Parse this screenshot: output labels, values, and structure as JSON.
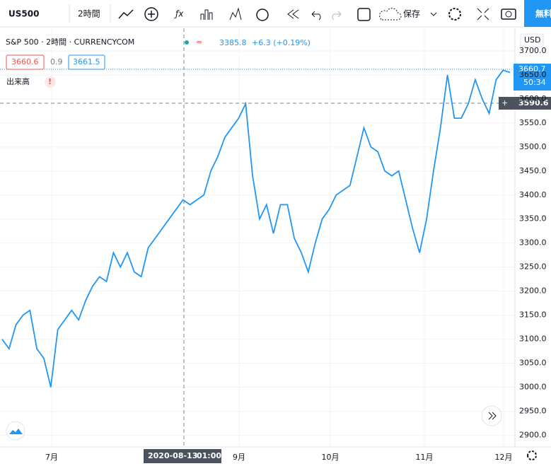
{
  "ui": {
    "symbol": "US500",
    "interval": "2時間",
    "save": "保存",
    "free": "無料",
    "legend_name": "S&P 500 · 2時間 · CURRENCYCOM",
    "legend_price": "3385.8",
    "legend_change": "+6.3 (+0.19%)",
    "bid": "3660.6",
    "spread": "0.9",
    "ask": "3661.5",
    "volume": "出来高",
    "currency": "USD",
    "last_price": "3660.7",
    "countdown": "50:34",
    "ask_line": "3655.9",
    "cross_price": "3590.6",
    "cross_time": "2020-08-13",
    "cross_hour": "01:00"
  },
  "chart_data": {
    "type": "line",
    "color": "#2196f3",
    "grid": true,
    "values": [
      3100,
      3080,
      3130,
      3150,
      3160,
      3080,
      3060,
      3000,
      3120,
      3140,
      3160,
      3140,
      3180,
      3210,
      3230,
      3220,
      3280,
      3250,
      3280,
      3240,
      3230,
      3290,
      3310,
      3330,
      3350,
      3370,
      3390,
      3380,
      3390,
      3400,
      3450,
      3480,
      3520,
      3540,
      3560,
      3590,
      3440,
      3350,
      3380,
      3320,
      3380,
      3380,
      3310,
      3280,
      3240,
      3300,
      3350,
      3370,
      3400,
      3410,
      3420,
      3480,
      3540,
      3500,
      3490,
      3450,
      3440,
      3450,
      3390,
      3330,
      3280,
      3350,
      3450,
      3540,
      3650,
      3560,
      3560,
      3590,
      3640,
      3600,
      3570,
      3640,
      3660,
      3655
    ],
    "xlim": [
      0,
      72.8
    ],
    "xticks": [
      {
        "value": 7.3,
        "label": "7月"
      },
      {
        "value": 33.8,
        "label": "9月"
      },
      {
        "value": 46.7,
        "label": "10月"
      },
      {
        "value": 60,
        "label": "11月"
      },
      {
        "value": 71.2,
        "label": "12月"
      }
    ],
    "ylim": [
      2874.1,
      3726.5
    ],
    "yticks": [
      {
        "value": 2900,
        "label": "2900.0"
      },
      {
        "value": 2950,
        "label": "2950.0"
      },
      {
        "value": 3000,
        "label": "3000.0"
      },
      {
        "value": 3050,
        "label": "3050.0"
      },
      {
        "value": 3100,
        "label": "3100.0"
      },
      {
        "value": 3150,
        "label": "3150.0"
      },
      {
        "value": 3200,
        "label": "3200.0"
      },
      {
        "value": 3250,
        "label": "3250.0"
      },
      {
        "value": 3300,
        "label": "3300.0"
      },
      {
        "value": 3350,
        "label": "3350.0"
      },
      {
        "value": 3400,
        "label": "3400.0"
      },
      {
        "value": 3450,
        "label": "3450.0"
      },
      {
        "value": 3500,
        "label": "3500.0"
      },
      {
        "value": 3550,
        "label": "3550.0"
      },
      {
        "value": 3600,
        "label": "3600.0"
      },
      {
        "value": 3650,
        "label": "3650.0"
      },
      {
        "value": 3700,
        "label": "3700.0"
      }
    ]
  }
}
